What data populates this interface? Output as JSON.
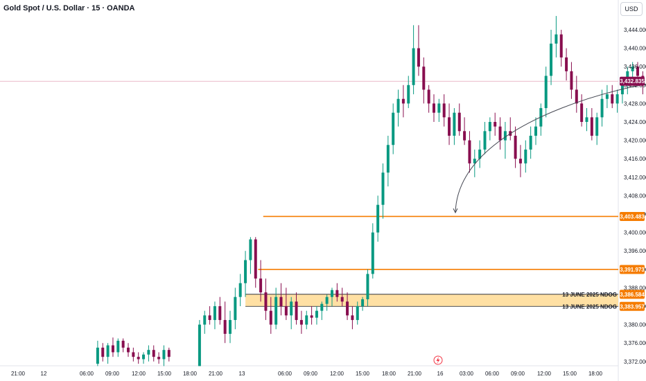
{
  "header": {
    "title": "Gold Spot / U.S. Dollar · 15 · OANDA",
    "currency": "USD"
  },
  "colors": {
    "up": "#089981",
    "down": "#880e4f",
    "level": "#f57c00",
    "zone": "#ffe0a3",
    "current": "#880e4f"
  },
  "chart_data": {
    "type": "candlestick",
    "title": "Gold Spot / U.S. Dollar · 15 · OANDA",
    "ylim": [
      3370,
      3448
    ],
    "y_ticks": [
      "3,444.000",
      "3,440.000",
      "3,436.000",
      "3,432.000",
      "3,428.000",
      "3,424.000",
      "3,420.000",
      "3,416.000",
      "3,412.000",
      "3,408.000",
      "3,404.000",
      "3,400.000",
      "3,396.000",
      "3,392.000",
      "3,388.000",
      "3,384.000",
      "3,380.000",
      "3,376.000",
      "3,372.000"
    ],
    "y_tick_values": [
      3444,
      3440,
      3436,
      3432,
      3428,
      3424,
      3420,
      3416,
      3412,
      3408,
      3404,
      3400,
      3396,
      3392,
      3388,
      3384,
      3380,
      3376,
      3372
    ],
    "x_ticks": [
      "21:00",
      "12",
      "06:00",
      "09:00",
      "12:00",
      "15:00",
      "18:00",
      "21:00",
      "13",
      "06:00",
      "09:00",
      "12:00",
      "15:00",
      "18:00",
      "21:00",
      "16",
      "03:00",
      "06:00",
      "09:00",
      "12:00",
      "15:00",
      "18:00"
    ],
    "current_price": 3432.835,
    "current_price_label": "3,432.835",
    "levels": [
      {
        "label": "3,403.483",
        "value": 3403.483,
        "start_x": 51.5
      },
      {
        "label": "3,391.973",
        "value": 3391.973,
        "start_x": 50.5
      }
    ],
    "zone": {
      "top": 3386.584,
      "bottom": 3383.957,
      "top_label": "3,386.584",
      "bottom_label": "3,383.957",
      "note_top": "13 JUNE 2025 NDOG",
      "note_bottom": "13 JUNE 2025 NDOG",
      "start_x": 48
    },
    "projection": {
      "from": 3432.4,
      "to": 3404.3
    },
    "ohlc": [
      {
        "x": 19,
        "o": 3371.5,
        "h": 3376.5,
        "l": 3371,
        "c": 3375
      },
      {
        "x": 20,
        "o": 3375,
        "h": 3376,
        "l": 3372,
        "c": 3373
      },
      {
        "x": 21,
        "o": 3373,
        "h": 3376,
        "l": 3371.5,
        "c": 3375.5
      },
      {
        "x": 22,
        "o": 3375.5,
        "h": 3377.2,
        "l": 3373,
        "c": 3374
      },
      {
        "x": 23,
        "o": 3374,
        "h": 3377,
        "l": 3373,
        "c": 3376.5
      },
      {
        "x": 24,
        "o": 3376.5,
        "h": 3377,
        "l": 3374,
        "c": 3375
      },
      {
        "x": 25,
        "o": 3375,
        "h": 3376,
        "l": 3373,
        "c": 3374
      },
      {
        "x": 26,
        "o": 3374,
        "h": 3375,
        "l": 3372,
        "c": 3373
      },
      {
        "x": 27,
        "o": 3373,
        "h": 3374,
        "l": 3371.5,
        "c": 3372.5
      },
      {
        "x": 28,
        "o": 3372.5,
        "h": 3374,
        "l": 3371.5,
        "c": 3373.5
      },
      {
        "x": 29,
        "o": 3373.5,
        "h": 3375.5,
        "l": 3372,
        "c": 3374.5
      },
      {
        "x": 30,
        "o": 3374.5,
        "h": 3375.5,
        "l": 3372,
        "c": 3373
      },
      {
        "x": 31,
        "o": 3373,
        "h": 3374,
        "l": 3371.5,
        "c": 3372.5
      },
      {
        "x": 32,
        "o": 3372.5,
        "h": 3375.5,
        "l": 3371,
        "c": 3374.5
      },
      {
        "x": 33,
        "o": 3374.5,
        "h": 3375,
        "l": 3372,
        "c": 3373
      },
      {
        "x": 39,
        "o": 3371,
        "h": 3381,
        "l": 3371,
        "c": 3380
      },
      {
        "x": 40,
        "o": 3380,
        "h": 3383,
        "l": 3378,
        "c": 3382
      },
      {
        "x": 41,
        "o": 3382,
        "h": 3384,
        "l": 3380,
        "c": 3381
      },
      {
        "x": 42,
        "o": 3381,
        "h": 3385,
        "l": 3379,
        "c": 3384
      },
      {
        "x": 43,
        "o": 3384,
        "h": 3386,
        "l": 3380,
        "c": 3381
      },
      {
        "x": 44,
        "o": 3381,
        "h": 3385,
        "l": 3376,
        "c": 3378
      },
      {
        "x": 45,
        "o": 3378,
        "h": 3383,
        "l": 3376,
        "c": 3381
      },
      {
        "x": 46,
        "o": 3381,
        "h": 3388,
        "l": 3379,
        "c": 3386
      },
      {
        "x": 47,
        "o": 3386,
        "h": 3391,
        "l": 3384,
        "c": 3389
      },
      {
        "x": 48,
        "o": 3389,
        "h": 3396,
        "l": 3386,
        "c": 3394
      },
      {
        "x": 49,
        "o": 3394,
        "h": 3399,
        "l": 3391,
        "c": 3398.5
      },
      {
        "x": 50,
        "o": 3398.5,
        "h": 3399,
        "l": 3388,
        "c": 3390
      },
      {
        "x": 51,
        "o": 3390,
        "h": 3394,
        "l": 3385,
        "c": 3387
      },
      {
        "x": 52,
        "o": 3387,
        "h": 3390,
        "l": 3381,
        "c": 3383
      },
      {
        "x": 53,
        "o": 3383,
        "h": 3386,
        "l": 3378,
        "c": 3380
      },
      {
        "x": 54,
        "o": 3380,
        "h": 3388,
        "l": 3379,
        "c": 3386
      },
      {
        "x": 55,
        "o": 3386,
        "h": 3389,
        "l": 3382,
        "c": 3384
      },
      {
        "x": 56,
        "o": 3384,
        "h": 3388,
        "l": 3381,
        "c": 3382
      },
      {
        "x": 57,
        "o": 3382,
        "h": 3386,
        "l": 3379,
        "c": 3385
      },
      {
        "x": 58,
        "o": 3385,
        "h": 3387,
        "l": 3380,
        "c": 3381
      },
      {
        "x": 59,
        "o": 3381,
        "h": 3383,
        "l": 3378,
        "c": 3380
      },
      {
        "x": 60,
        "o": 3380,
        "h": 3383,
        "l": 3379,
        "c": 3382
      },
      {
        "x": 61,
        "o": 3382,
        "h": 3384,
        "l": 3380,
        "c": 3381.5
      },
      {
        "x": 62,
        "o": 3381.5,
        "h": 3384,
        "l": 3380,
        "c": 3383
      },
      {
        "x": 63,
        "o": 3383,
        "h": 3385,
        "l": 3381,
        "c": 3384.5
      },
      {
        "x": 64,
        "o": 3384.5,
        "h": 3386.5,
        "l": 3383,
        "c": 3386
      },
      {
        "x": 65,
        "o": 3386,
        "h": 3388,
        "l": 3384,
        "c": 3387.5
      },
      {
        "x": 66,
        "o": 3387.5,
        "h": 3389,
        "l": 3385,
        "c": 3386
      },
      {
        "x": 67,
        "o": 3386,
        "h": 3388,
        "l": 3384,
        "c": 3385
      },
      {
        "x": 68,
        "o": 3385,
        "h": 3387,
        "l": 3381,
        "c": 3382
      },
      {
        "x": 69,
        "o": 3382,
        "h": 3384,
        "l": 3379,
        "c": 3381
      },
      {
        "x": 70,
        "o": 3381,
        "h": 3385,
        "l": 3380,
        "c": 3384
      },
      {
        "x": 71,
        "o": 3384,
        "h": 3386,
        "l": 3383,
        "c": 3385.5
      },
      {
        "x": 72,
        "o": 3385.5,
        "h": 3392,
        "l": 3384,
        "c": 3391
      },
      {
        "x": 73,
        "o": 3391,
        "h": 3402,
        "l": 3390,
        "c": 3400
      },
      {
        "x": 74,
        "o": 3400,
        "h": 3408,
        "l": 3398,
        "c": 3406
      },
      {
        "x": 75,
        "o": 3406,
        "h": 3415,
        "l": 3403,
        "c": 3413
      },
      {
        "x": 76,
        "o": 3413,
        "h": 3421,
        "l": 3410,
        "c": 3419
      },
      {
        "x": 77,
        "o": 3419,
        "h": 3428,
        "l": 3417,
        "c": 3426
      },
      {
        "x": 78,
        "o": 3426,
        "h": 3431,
        "l": 3423,
        "c": 3429
      },
      {
        "x": 79,
        "o": 3429,
        "h": 3432,
        "l": 3425,
        "c": 3428
      },
      {
        "x": 80,
        "o": 3428,
        "h": 3434,
        "l": 3427,
        "c": 3432
      },
      {
        "x": 81,
        "o": 3432,
        "h": 3445,
        "l": 3430,
        "c": 3440
      },
      {
        "x": 82,
        "o": 3440,
        "h": 3445,
        "l": 3434,
        "c": 3436
      },
      {
        "x": 83,
        "o": 3436,
        "h": 3438,
        "l": 3428,
        "c": 3431
      },
      {
        "x": 84,
        "o": 3431,
        "h": 3432,
        "l": 3426,
        "c": 3428
      },
      {
        "x": 85,
        "o": 3428,
        "h": 3430,
        "l": 3424,
        "c": 3426
      },
      {
        "x": 86,
        "o": 3426,
        "h": 3429,
        "l": 3424,
        "c": 3428
      },
      {
        "x": 87,
        "o": 3428,
        "h": 3430,
        "l": 3423,
        "c": 3425
      },
      {
        "x": 88,
        "o": 3425,
        "h": 3428,
        "l": 3419,
        "c": 3421
      },
      {
        "x": 89,
        "o": 3421,
        "h": 3427,
        "l": 3419,
        "c": 3426
      },
      {
        "x": 90,
        "o": 3426,
        "h": 3428,
        "l": 3421,
        "c": 3422
      },
      {
        "x": 91,
        "o": 3422,
        "h": 3425,
        "l": 3419,
        "c": 3420
      },
      {
        "x": 92,
        "o": 3420,
        "h": 3422,
        "l": 3413,
        "c": 3415
      },
      {
        "x": 93,
        "o": 3415,
        "h": 3418,
        "l": 3412,
        "c": 3416
      },
      {
        "x": 94,
        "o": 3416,
        "h": 3420,
        "l": 3414,
        "c": 3418
      },
      {
        "x": 95,
        "o": 3418,
        "h": 3424,
        "l": 3417,
        "c": 3422
      },
      {
        "x": 96,
        "o": 3422,
        "h": 3425,
        "l": 3420,
        "c": 3424
      },
      {
        "x": 97,
        "o": 3424,
        "h": 3426,
        "l": 3421,
        "c": 3423
      },
      {
        "x": 98,
        "o": 3423,
        "h": 3425,
        "l": 3418,
        "c": 3420
      },
      {
        "x": 99,
        "o": 3420,
        "h": 3424,
        "l": 3416,
        "c": 3422
      },
      {
        "x": 100,
        "o": 3422,
        "h": 3425,
        "l": 3420,
        "c": 3421
      },
      {
        "x": 101,
        "o": 3421,
        "h": 3423,
        "l": 3414,
        "c": 3416
      },
      {
        "x": 102,
        "o": 3416,
        "h": 3419,
        "l": 3412,
        "c": 3415
      },
      {
        "x": 103,
        "o": 3415,
        "h": 3420,
        "l": 3413,
        "c": 3418
      },
      {
        "x": 104,
        "o": 3418,
        "h": 3423,
        "l": 3416,
        "c": 3421
      },
      {
        "x": 105,
        "o": 3421,
        "h": 3425,
        "l": 3419,
        "c": 3423
      },
      {
        "x": 106,
        "o": 3423,
        "h": 3428,
        "l": 3421,
        "c": 3427
      },
      {
        "x": 107,
        "o": 3427,
        "h": 3436,
        "l": 3425,
        "c": 3434
      },
      {
        "x": 108,
        "o": 3434,
        "h": 3444,
        "l": 3432,
        "c": 3441
      },
      {
        "x": 109,
        "o": 3441,
        "h": 3447,
        "l": 3438,
        "c": 3443
      },
      {
        "x": 110,
        "o": 3443,
        "h": 3444,
        "l": 3436,
        "c": 3438
      },
      {
        "x": 111,
        "o": 3438,
        "h": 3440,
        "l": 3433,
        "c": 3435
      },
      {
        "x": 112,
        "o": 3435,
        "h": 3437,
        "l": 3429,
        "c": 3431
      },
      {
        "x": 113,
        "o": 3431,
        "h": 3434,
        "l": 3426,
        "c": 3428
      },
      {
        "x": 114,
        "o": 3428,
        "h": 3430,
        "l": 3423,
        "c": 3424
      },
      {
        "x": 115,
        "o": 3424,
        "h": 3427,
        "l": 3422,
        "c": 3425
      },
      {
        "x": 116,
        "o": 3425,
        "h": 3427,
        "l": 3420,
        "c": 3421
      },
      {
        "x": 117,
        "o": 3421,
        "h": 3426,
        "l": 3419,
        "c": 3425
      },
      {
        "x": 118,
        "o": 3425,
        "h": 3431,
        "l": 3423,
        "c": 3429
      },
      {
        "x": 119,
        "o": 3429,
        "h": 3432,
        "l": 3427,
        "c": 3430
      },
      {
        "x": 120,
        "o": 3430,
        "h": 3432,
        "l": 3427,
        "c": 3428
      },
      {
        "x": 121,
        "o": 3428,
        "h": 3431,
        "l": 3426,
        "c": 3430
      },
      {
        "x": 122,
        "o": 3430,
        "h": 3433,
        "l": 3428,
        "c": 3432
      },
      {
        "x": 123,
        "o": 3432,
        "h": 3436,
        "l": 3430,
        "c": 3435
      },
      {
        "x": 124,
        "o": 3435,
        "h": 3437,
        "l": 3433,
        "c": 3436
      },
      {
        "x": 125,
        "o": 3436,
        "h": 3437,
        "l": 3433,
        "c": 3434
      },
      {
        "x": 126,
        "o": 3434,
        "h": 3435,
        "l": 3430,
        "c": 3432
      },
      {
        "x": 127,
        "o": 3432,
        "h": 3434,
        "l": 3431,
        "c": 3433
      },
      {
        "x": 128,
        "o": 3433,
        "h": 3434,
        "l": 3431.5,
        "c": 3432.8
      }
    ]
  }
}
